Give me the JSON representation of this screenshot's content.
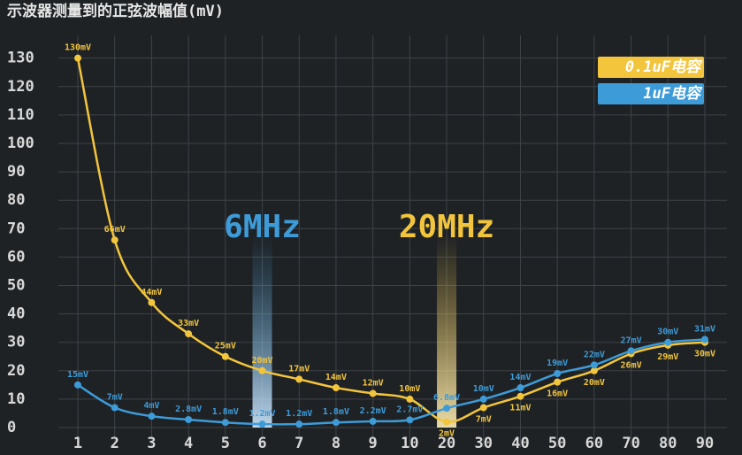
{
  "chart_data": {
    "type": "line",
    "title": "示波器测量到的正弦波幅值(mV)",
    "categories": [
      "1",
      "2",
      "3",
      "4",
      "5",
      "6",
      "7",
      "8",
      "9",
      "10",
      "20",
      "30",
      "40",
      "50",
      "60",
      "70",
      "80",
      "90"
    ],
    "series": [
      {
        "name": "0.1uF电容",
        "color": "#f2c53d",
        "values": [
          130,
          66,
          44,
          33,
          25,
          20,
          17,
          14,
          12,
          10,
          2,
          7,
          11,
          16,
          20,
          26,
          29,
          30
        ],
        "value_labels": [
          "130mV",
          "66mV",
          "44mV",
          "33mV",
          "25mV",
          "20mV",
          "17mV",
          "14mV",
          "12mV",
          "10mV",
          "2mV",
          "7mV",
          "11mV",
          "16mV",
          "20mV",
          "26mV",
          "29mV",
          "30mV"
        ]
      },
      {
        "name": "1uF电容",
        "color": "#3d9bd8",
        "values": [
          15,
          7,
          4,
          2.8,
          1.8,
          1.2,
          1.2,
          1.8,
          2.2,
          2.7,
          6.8,
          10,
          14,
          19,
          22,
          27,
          30,
          31
        ],
        "value_labels": [
          "15mV",
          "7mV",
          "4mV",
          "2.8mV",
          "1.8mV",
          "1.2mV",
          "1.2mV",
          "1.8mV",
          "2.2mV",
          "2.7mV",
          "6.8mV",
          "10mV",
          "14mV",
          "19mV",
          "22mV",
          "27mV",
          "30mV",
          "31mV"
        ]
      }
    ],
    "annotations": [
      {
        "text": "6MHz",
        "category": "6",
        "color": "#3d9bd8"
      },
      {
        "text": "20MHz",
        "category": "20",
        "color": "#f2c53d"
      }
    ],
    "ylim": [
      0,
      138
    ],
    "yticks": [
      0,
      10,
      20,
      30,
      40,
      50,
      60,
      70,
      80,
      90,
      100,
      110,
      120,
      130
    ],
    "grid": true,
    "legend": "upper right"
  }
}
